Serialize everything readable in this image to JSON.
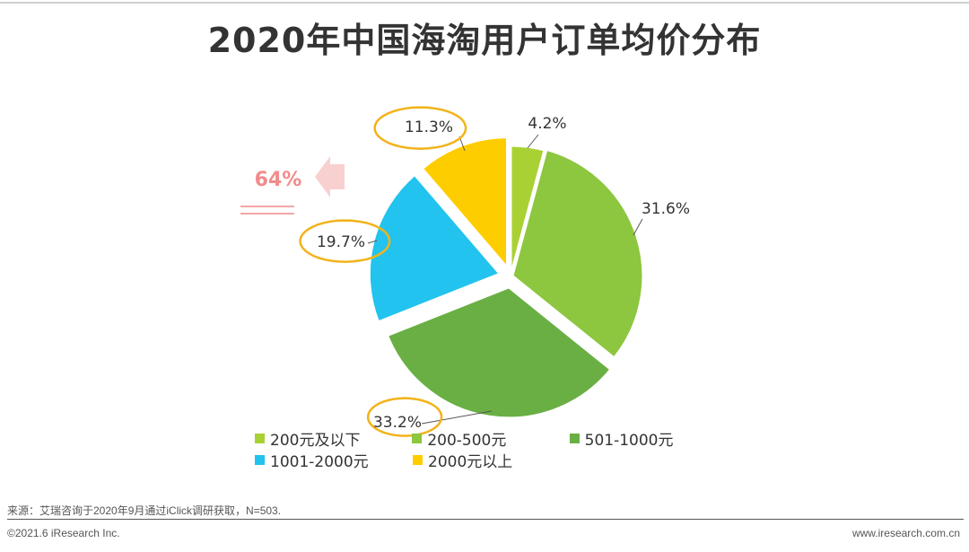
{
  "title": "2020年中国海淘用户订单均价分布",
  "chart_data": {
    "type": "pie",
    "title": "2020年中国海淘用户订单均价分布",
    "categories": [
      "200元及以下",
      "200-500元",
      "501-1000元",
      "1001-2000元",
      "2000元以上"
    ],
    "values": [
      4.2,
      31.6,
      33.2,
      19.7,
      11.3
    ],
    "value_labels": [
      "4.2%",
      "31.6%",
      "33.2%",
      "19.7%",
      "11.3%"
    ],
    "colors": [
      "#a9d134",
      "#8dc63f",
      "#6aaf44",
      "#22c3ee",
      "#fecd00"
    ],
    "exploded": [
      "501-1000元",
      "1001-2000元",
      "2000元以上"
    ],
    "annotation": "64%",
    "legend_position": "bottom"
  },
  "annotation_color": "#f28b8b",
  "circle_color": "#f2b31a",
  "source": "来源：艾瑞咨询于2020年9月通过iClick调研获取，N=503.",
  "copyright": "©2021.6 iResearch Inc.",
  "website": "www.iresearch.com.cn"
}
